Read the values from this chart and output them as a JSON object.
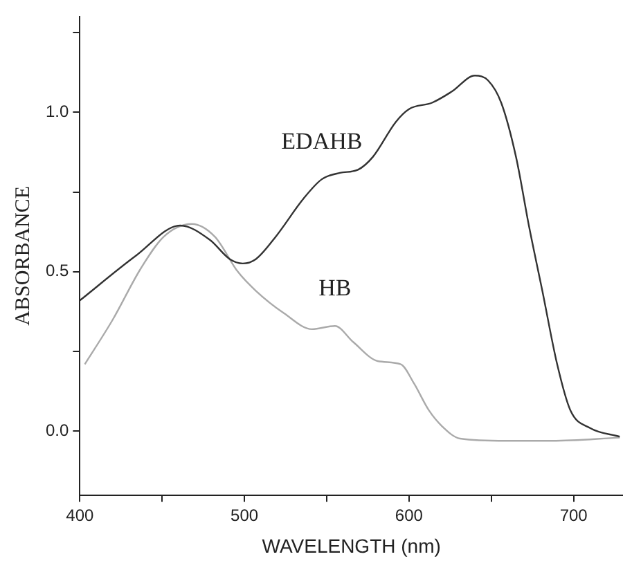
{
  "chart_data": {
    "type": "line",
    "xlabel": "WAVELENGTH (nm)",
    "ylabel": "ABSORBANCE",
    "xlim": [
      400,
      730
    ],
    "xticks": [
      400,
      {
        "value": 450,
        "label": null
      },
      500,
      {
        "value": 550,
        "label": null
      },
      600,
      {
        "value": 650,
        "label": null
      },
      700
    ],
    "ylim": [
      -0.2,
      1.3
    ],
    "yticks": [
      {
        "value": 0,
        "label": "0.0"
      },
      {
        "value": 0.25,
        "label": null
      },
      0.5,
      {
        "value": 0.75,
        "label": null
      },
      {
        "value": 1,
        "label": "1.0"
      },
      {
        "value": 1.25,
        "label": null
      }
    ],
    "grid": false,
    "legend": false,
    "marker": "none",
    "line_style": "solid",
    "series": [
      {
        "color": "#333333",
        "x": [
          400,
          434,
          461,
          479,
          491,
          499,
          507,
          519,
          536,
          547,
          558,
          569,
          578,
          592,
          600,
          614,
          626,
          640,
          648,
          656,
          665,
          673,
          681,
          690,
          698,
          710,
          728
        ],
        "values": [
          0.41,
          0.55,
          0.645,
          0.6,
          0.54,
          0.526,
          0.54,
          0.61,
          0.73,
          0.79,
          0.81,
          0.82,
          0.86,
          0.97,
          1.01,
          1.03,
          1.065,
          1.115,
          1.1,
          1.03,
          0.86,
          0.64,
          0.44,
          0.21,
          0.066,
          0.01,
          -0.017
        ]
      },
      {
        "color": "#aaaaaa",
        "x": [
          403,
          420,
          437,
          451,
          468,
          482,
          496,
          507,
          524,
          541,
          555,
          566,
          581,
          595,
          603,
          612,
          620,
          631,
          659,
          687,
          728
        ],
        "values": [
          0.21,
          0.35,
          0.51,
          0.61,
          0.65,
          0.61,
          0.5,
          0.44,
          0.37,
          0.32,
          0.33,
          0.28,
          0.22,
          0.21,
          0.15,
          0.066,
          0.016,
          -0.023,
          -0.03,
          -0.03,
          -0.02
        ]
      }
    ],
    "annotations": [
      {
        "text": "EDAHB",
        "x": 547,
        "y": 0.79
      },
      {
        "text": "HB",
        "x": 555,
        "y": 0.33
      }
    ]
  }
}
